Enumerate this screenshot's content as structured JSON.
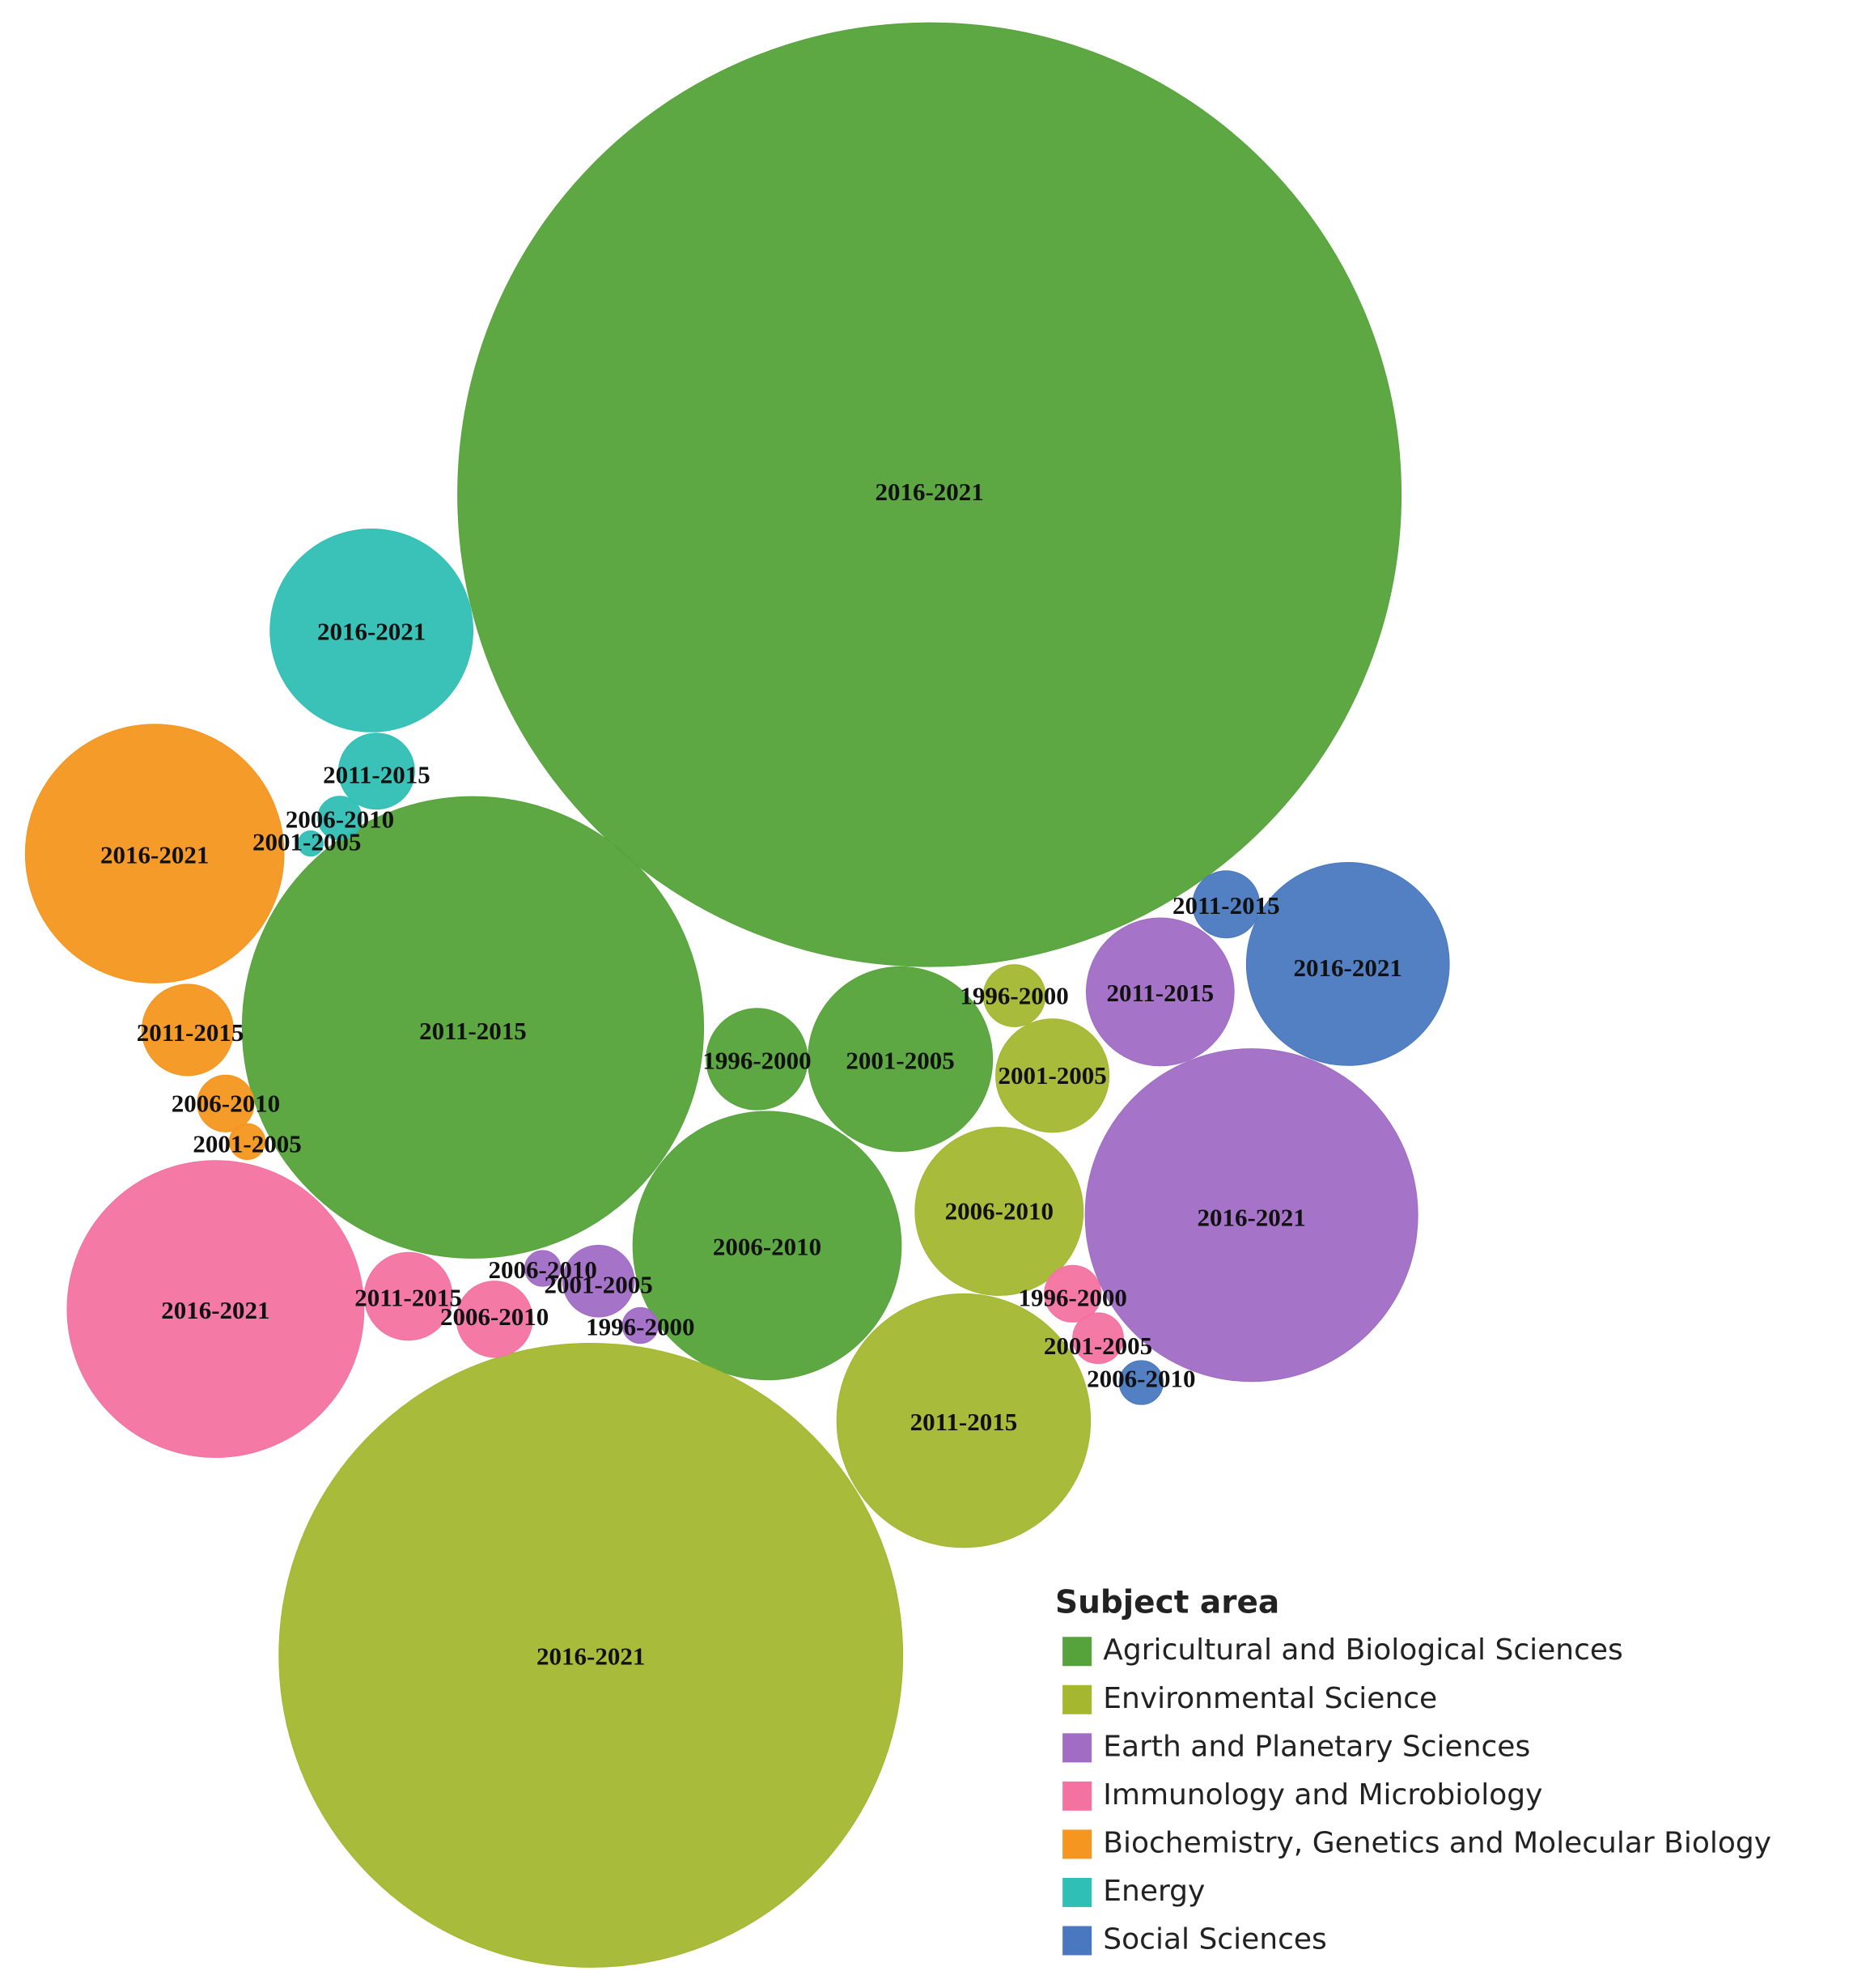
{
  "chart_data": {
    "type": "bubble",
    "legend_title": "Subject area",
    "legend": "bottom-right",
    "series": [
      {
        "name": "Agricultural and Biological Sciences",
        "color": "#55a33a",
        "labels": [
          "2016-2021",
          "2011-2015",
          "2006-2010",
          "2001-2005",
          "1996-2000"
        ],
        "values": [
          1384,
          331,
          112,
          53,
          16
        ]
      },
      {
        "name": "Environmental Science",
        "color": "#a3b72f",
        "labels": [
          "2016-2021",
          "2011-2015",
          "2006-2010",
          "2001-2005",
          "1996-2000"
        ],
        "values": [
          605,
          100,
          44,
          20,
          6
        ]
      },
      {
        "name": "Earth and Planetary Sciences",
        "color": "#a06cc4",
        "labels": [
          "2016-2021",
          "2011-2015",
          "2001-2005",
          "2006-2010",
          "1996-2000"
        ],
        "values": [
          172,
          34,
          8,
          2,
          2
        ]
      },
      {
        "name": "Immunology and Microbiology",
        "color": "#f472a0",
        "labels": [
          "2016-2021",
          "2011-2015",
          "2006-2010",
          "1996-2000",
          "2001-2005"
        ],
        "values": [
          137,
          12,
          9,
          5,
          4
        ]
      },
      {
        "name": "Biochemistry, Genetics and Molecular Biology",
        "color": "#f4961f",
        "labels": [
          "2016-2021",
          "2011-2015",
          "2006-2010",
          "2001-2005"
        ],
        "values": [
          104,
          13,
          5,
          2
        ]
      },
      {
        "name": "Energy",
        "color": "#2fbfb5",
        "labels": [
          "2016-2021",
          "2011-2015",
          "2006-2010",
          "2001-2005"
        ],
        "values": [
          64,
          9,
          3,
          1
        ]
      },
      {
        "name": "Social Sciences",
        "color": "#4a78c0",
        "labels": [
          "2016-2021",
          "2011-2015",
          "2006-2010"
        ],
        "values": [
          64,
          7,
          3
        ]
      }
    ]
  }
}
